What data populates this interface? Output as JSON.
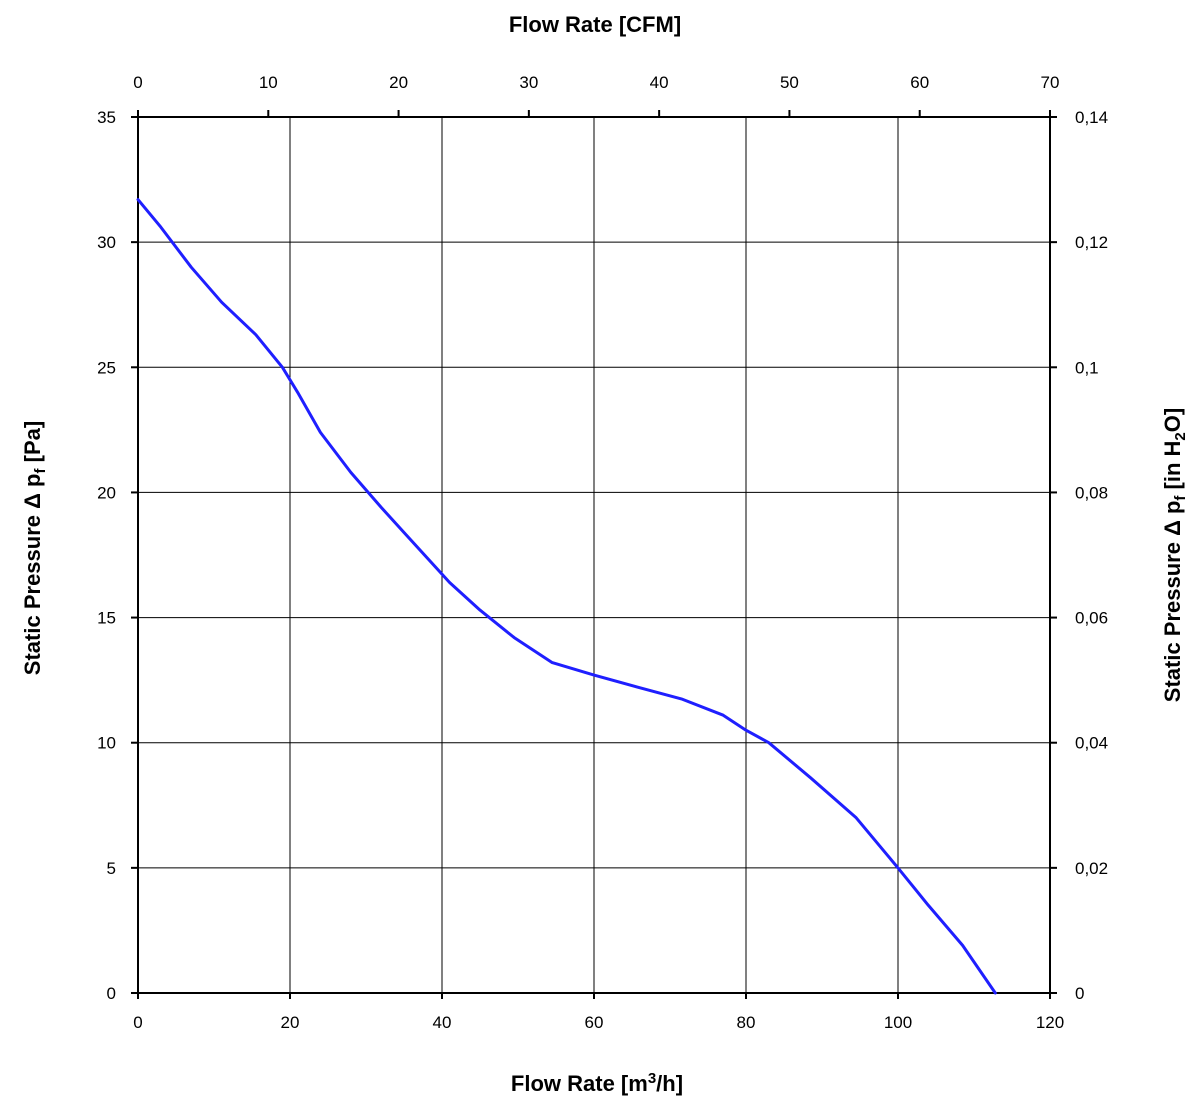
{
  "chart_data": {
    "type": "line",
    "title": "",
    "top_axis_title": "Flow Rate [CFM]",
    "bottom_axis": {
      "label_text": "Flow Rate [m",
      "label_sup": "3",
      "label_tail": "/h]"
    },
    "left_axis": {
      "label_text": "Static Pressure Δ p",
      "label_sub": "f",
      "label_tail": " [Pa]"
    },
    "right_axis": {
      "label_text": "Static Pressure Δ p",
      "label_sub": "f",
      "label_tail": " [in H",
      "label_sub2": "2",
      "label_tail2": "O]"
    },
    "xlim": [
      0,
      120
    ],
    "ylim": [
      0,
      35
    ],
    "x2lim": [
      0,
      70
    ],
    "y2lim": [
      0,
      0.14
    ],
    "x_ticks": [
      "0",
      "20",
      "40",
      "60",
      "80",
      "100",
      "120"
    ],
    "y_ticks": [
      "0",
      "5",
      "10",
      "15",
      "20",
      "25",
      "30",
      "35"
    ],
    "x2_ticks": [
      "0",
      "10",
      "20",
      "30",
      "40",
      "50",
      "60",
      "70"
    ],
    "y2_ticks": [
      "0",
      "0,02",
      "0,04",
      "0,06",
      "0,08",
      "0,1",
      "0,12",
      "0,14"
    ],
    "grid": true,
    "series": [
      {
        "color": "#1f1fff",
        "points": [
          [
            0,
            31.7
          ],
          [
            3,
            30.6
          ],
          [
            7,
            29.0
          ],
          [
            11,
            27.6
          ],
          [
            15.5,
            26.3
          ],
          [
            19,
            25.0
          ],
          [
            21,
            24.0
          ],
          [
            24,
            22.4
          ],
          [
            28,
            20.8
          ],
          [
            32,
            19.4
          ],
          [
            35,
            18.4
          ],
          [
            38,
            17.4
          ],
          [
            41,
            16.4
          ],
          [
            45,
            15.3
          ],
          [
            49.5,
            14.2
          ],
          [
            54.5,
            13.2
          ],
          [
            60,
            12.7
          ],
          [
            66,
            12.2
          ],
          [
            71.5,
            11.75
          ],
          [
            77,
            11.1
          ],
          [
            80,
            10.5
          ],
          [
            83,
            10.0
          ],
          [
            88.5,
            8.6
          ],
          [
            94.5,
            7.0
          ],
          [
            100,
            5.0
          ],
          [
            104,
            3.5
          ],
          [
            108.5,
            1.9
          ],
          [
            112.8,
            0.0
          ]
        ]
      }
    ]
  }
}
